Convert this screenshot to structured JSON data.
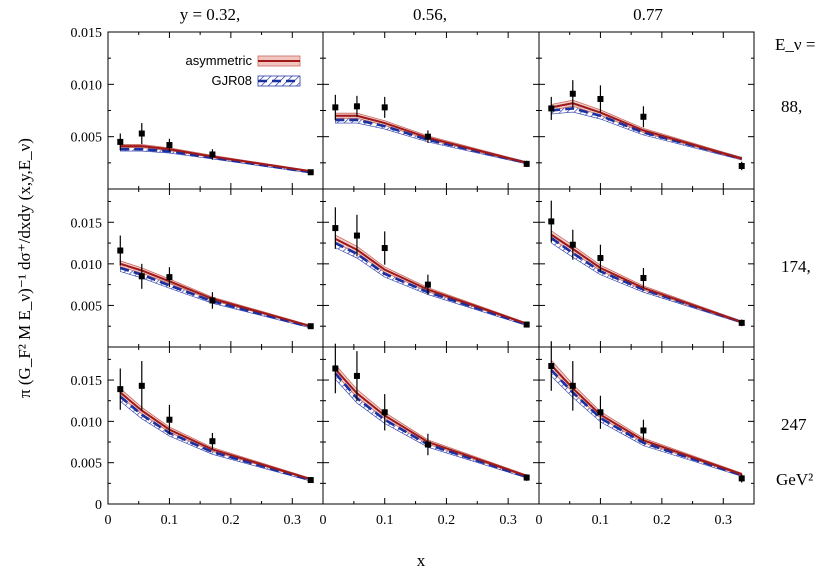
{
  "chart_data": {
    "type": "line",
    "layout": "3x3 panel grid",
    "columns": [
      {
        "y": "y = 0.32,",
        "y_value": 0.32
      },
      {
        "y": "0.56,",
        "y_value": 0.56
      },
      {
        "y": "0.77",
        "y_value": 0.77
      }
    ],
    "rows": [
      {
        "energy_label": "88,",
        "energy": 88,
        "ylim": [
          0,
          0.015
        ]
      },
      {
        "energy_label": "174,",
        "energy": 174,
        "ylim": [
          0,
          0.019
        ]
      },
      {
        "energy_label": "247",
        "energy": 247,
        "ylim": [
          0,
          0.019
        ]
      }
    ],
    "energy_header": "E_ν =",
    "energy_unit": "GeV²",
    "xlabel": "x",
    "ylabel": "π (G_F² M E_ν)⁻¹ dσ⁺/dxdy (x,y,E_ν)",
    "xlim": [
      0,
      0.35
    ],
    "x_ticks": [
      "0",
      "0.1",
      "0.2",
      "0.3"
    ],
    "y_ticks": [
      "0",
      "0.005",
      "0.010",
      "0.015"
    ],
    "legend": {
      "position": "top-left of first panel",
      "entries": [
        {
          "label": "asymmetric",
          "color": "#a01818",
          "band": "#f2c6c0"
        },
        {
          "label": "GJR08",
          "color": "#1a2fa0",
          "band": "hatched blue"
        }
      ]
    },
    "x_points": [
      0.02,
      0.055,
      0.1,
      0.17,
      0.33
    ],
    "panels": [
      {
        "row": 0,
        "col": 0,
        "data": [
          0.0045,
          0.0053,
          0.0042,
          0.0033,
          0.0016
        ],
        "err": [
          0.0008,
          0.001,
          0.0006,
          0.0005,
          0.0002
        ],
        "asym": [
          0.0041,
          0.0041,
          0.0038,
          0.0031,
          0.0017
        ],
        "gjr": [
          0.0038,
          0.0038,
          0.0036,
          0.003,
          0.0016
        ]
      },
      {
        "row": 0,
        "col": 1,
        "data": [
          0.0078,
          0.0079,
          0.0078,
          0.005,
          0.0024
        ],
        "err": [
          0.0012,
          0.001,
          0.001,
          0.0006,
          0.0003
        ],
        "asym": [
          0.007,
          0.007,
          0.0063,
          0.0049,
          0.0025
        ],
        "gjr": [
          0.0066,
          0.0066,
          0.006,
          0.0047,
          0.0025
        ]
      },
      {
        "row": 0,
        "col": 2,
        "data": [
          0.0077,
          0.0091,
          0.0086,
          0.0069,
          0.0022
        ],
        "err": [
          0.0011,
          0.0013,
          0.0013,
          0.001,
          0.0004
        ],
        "asym": [
          0.0078,
          0.0082,
          0.0073,
          0.0056,
          0.0029
        ],
        "gjr": [
          0.0075,
          0.0077,
          0.007,
          0.0054,
          0.0029
        ]
      },
      {
        "row": 1,
        "col": 0,
        "data": [
          0.0116,
          0.0085,
          0.0084,
          0.0056,
          0.0025
        ],
        "err": [
          0.0018,
          0.0015,
          0.0012,
          0.001,
          0.0002
        ],
        "asym": [
          0.01,
          0.0092,
          0.0079,
          0.0058,
          0.0025
        ],
        "gjr": [
          0.0095,
          0.0087,
          0.0074,
          0.0055,
          0.0024
        ]
      },
      {
        "row": 1,
        "col": 1,
        "data": [
          0.0143,
          0.0134,
          0.0119,
          0.0075,
          0.0027
        ],
        "err": [
          0.0025,
          0.0025,
          0.002,
          0.0012,
          0.0003
        ],
        "asym": [
          0.013,
          0.0117,
          0.0093,
          0.0069,
          0.0028
        ],
        "gjr": [
          0.0125,
          0.0112,
          0.0088,
          0.0066,
          0.0027
        ]
      },
      {
        "row": 1,
        "col": 2,
        "data": [
          0.0151,
          0.0123,
          0.0107,
          0.0083,
          0.0029
        ],
        "err": [
          0.0025,
          0.0018,
          0.0016,
          0.0012,
          0.0004
        ],
        "asym": [
          0.0135,
          0.0118,
          0.0095,
          0.0071,
          0.003
        ],
        "gjr": [
          0.0131,
          0.0113,
          0.0091,
          0.0069,
          0.003
        ]
      },
      {
        "row": 2,
        "col": 0,
        "data": [
          0.0139,
          0.0143,
          0.0102,
          0.0076,
          0.0029
        ],
        "err": [
          0.0025,
          0.003,
          0.0018,
          0.001,
          0.0003
        ],
        "asym": [
          0.0135,
          0.0113,
          0.009,
          0.0066,
          0.003
        ],
        "gjr": [
          0.013,
          0.0108,
          0.0086,
          0.0063,
          0.0029
        ]
      },
      {
        "row": 2,
        "col": 1,
        "data": [
          0.0164,
          0.0155,
          0.0111,
          0.0072,
          0.0032
        ],
        "err": [
          0.003,
          0.003,
          0.0022,
          0.0013,
          0.0004
        ],
        "asym": [
          0.0163,
          0.0134,
          0.0107,
          0.0075,
          0.0034
        ],
        "gjr": [
          0.0158,
          0.0128,
          0.0102,
          0.0072,
          0.0033
        ]
      },
      {
        "row": 2,
        "col": 2,
        "data": [
          0.0167,
          0.0143,
          0.0111,
          0.0089,
          0.0031
        ],
        "err": [
          0.003,
          0.003,
          0.002,
          0.0013,
          0.0005
        ],
        "asym": [
          0.0168,
          0.014,
          0.0108,
          0.0077,
          0.0036
        ],
        "gjr": [
          0.0162,
          0.0135,
          0.0104,
          0.0074,
          0.0035
        ]
      }
    ]
  }
}
